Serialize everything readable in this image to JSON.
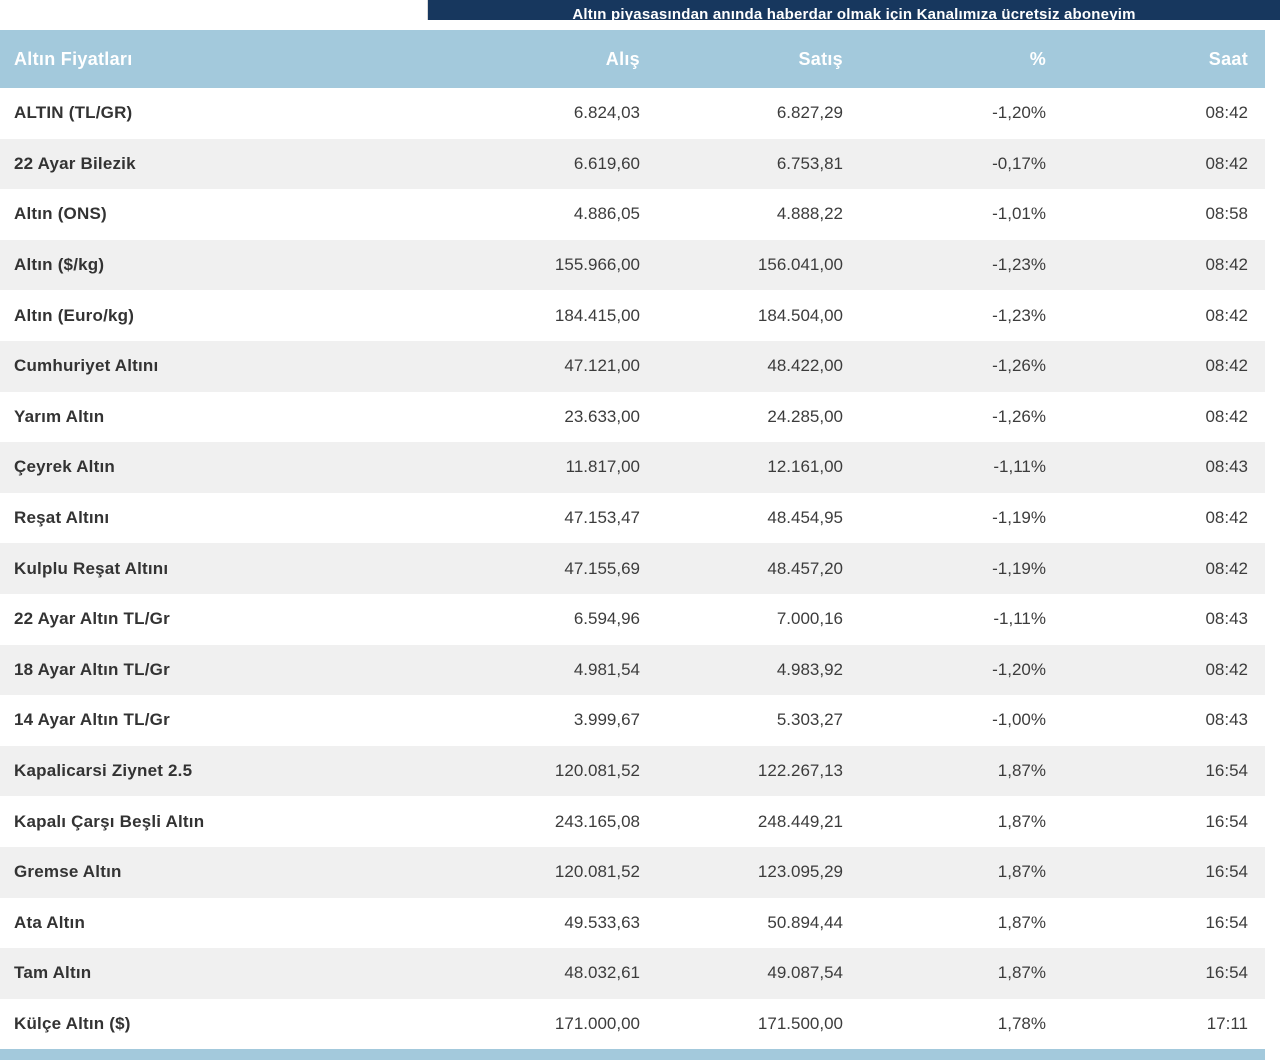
{
  "banner": {
    "text": "Altın piyasasından anında haberdar olmak için Kanalımıza ücretsiz aboneyim",
    "bg_color": "#17375e"
  },
  "colors": {
    "header_bg": "#a3c9dc",
    "alt_row_bg": "#f0f0f0",
    "text_dark": "#333333"
  },
  "table": {
    "headers": {
      "name": "Altın Fiyatları",
      "buy": "Alış",
      "sell": "Satış",
      "change": "%",
      "time": "Saat"
    },
    "rows": [
      {
        "name": "ALTIN (TL/GR)",
        "buy": "6.824,03",
        "sell": "6.827,29",
        "change": "-1,20%",
        "time": "08:42"
      },
      {
        "name": "22 Ayar Bilezik",
        "buy": "6.619,60",
        "sell": "6.753,81",
        "change": "-0,17%",
        "time": "08:42"
      },
      {
        "name": "Altın (ONS)",
        "buy": "4.886,05",
        "sell": "4.888,22",
        "change": "-1,01%",
        "time": "08:58"
      },
      {
        "name": "Altın ($/kg)",
        "buy": "155.966,00",
        "sell": "156.041,00",
        "change": "-1,23%",
        "time": "08:42"
      },
      {
        "name": "Altın (Euro/kg)",
        "buy": "184.415,00",
        "sell": "184.504,00",
        "change": "-1,23%",
        "time": "08:42"
      },
      {
        "name": "Cumhuriyet Altını",
        "buy": "47.121,00",
        "sell": "48.422,00",
        "change": "-1,26%",
        "time": "08:42"
      },
      {
        "name": "Yarım Altın",
        "buy": "23.633,00",
        "sell": "24.285,00",
        "change": "-1,26%",
        "time": "08:42"
      },
      {
        "name": "Çeyrek Altın",
        "buy": "11.817,00",
        "sell": "12.161,00",
        "change": "-1,11%",
        "time": "08:43"
      },
      {
        "name": "Reşat Altını",
        "buy": "47.153,47",
        "sell": "48.454,95",
        "change": "-1,19%",
        "time": "08:42"
      },
      {
        "name": "Kulplu Reşat Altını",
        "buy": "47.155,69",
        "sell": "48.457,20",
        "change": "-1,19%",
        "time": "08:42"
      },
      {
        "name": "22 Ayar Altın TL/Gr",
        "buy": "6.594,96",
        "sell": "7.000,16",
        "change": "-1,11%",
        "time": "08:43"
      },
      {
        "name": "18 Ayar Altın TL/Gr",
        "buy": "4.981,54",
        "sell": "4.983,92",
        "change": "-1,20%",
        "time": "08:42"
      },
      {
        "name": "14 Ayar Altın TL/Gr",
        "buy": "3.999,67",
        "sell": "5.303,27",
        "change": "-1,00%",
        "time": "08:43"
      },
      {
        "name": "Kapalicarsi Ziynet 2.5",
        "buy": "120.081,52",
        "sell": "122.267,13",
        "change": "1,87%",
        "time": "16:54"
      },
      {
        "name": "Kapalı Çarşı Beşli Altın",
        "buy": "243.165,08",
        "sell": "248.449,21",
        "change": "1,87%",
        "time": "16:54"
      },
      {
        "name": "Gremse Altın",
        "buy": "120.081,52",
        "sell": "123.095,29",
        "change": "1,87%",
        "time": "16:54"
      },
      {
        "name": "Ata Altın",
        "buy": "49.533,63",
        "sell": "50.894,44",
        "change": "1,87%",
        "time": "16:54"
      },
      {
        "name": "Tam Altın",
        "buy": "48.032,61",
        "sell": "49.087,54",
        "change": "1,87%",
        "time": "16:54"
      },
      {
        "name": "Külçe Altın ($)",
        "buy": "171.000,00",
        "sell": "171.500,00",
        "change": "1,78%",
        "time": "17:11"
      }
    ]
  }
}
